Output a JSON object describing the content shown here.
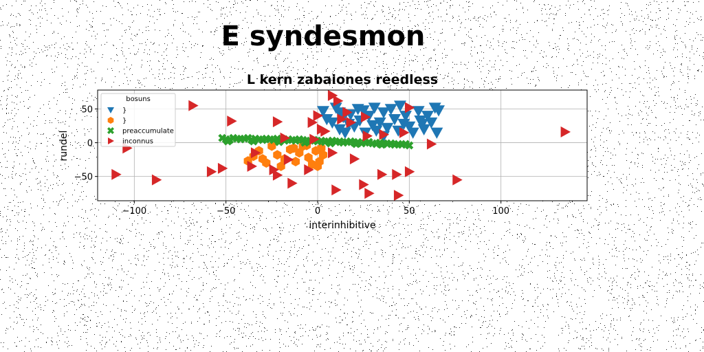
{
  "suptitle": "E syndesmon",
  "chart_data": {
    "type": "scatter",
    "title": "L kern zabaiones reedless",
    "xlabel": "interinhibitive",
    "ylabel": "rundel",
    "xlim": [
      -120,
      147
    ],
    "ylim": [
      -86,
      78
    ],
    "xticks": [
      -100,
      -50,
      0,
      50,
      100
    ],
    "yticks": [
      -50,
      0,
      50
    ],
    "xtick_labels": [
      "−100",
      "−50",
      "0",
      "50",
      "100"
    ],
    "ytick_labels": [
      "−50",
      "0",
      "50"
    ],
    "grid": true,
    "legend": {
      "title": "bosuns",
      "placement": "upper-left"
    },
    "series": [
      {
        "name": "}",
        "color": "#1f77b4",
        "marker": "triangle-down",
        "points": [
          [
            3,
            47
          ],
          [
            5,
            35
          ],
          [
            8,
            30
          ],
          [
            10,
            52
          ],
          [
            12,
            45
          ],
          [
            12,
            20
          ],
          [
            14,
            38
          ],
          [
            15,
            15
          ],
          [
            17,
            28
          ],
          [
            18,
            42
          ],
          [
            20,
            24
          ],
          [
            22,
            50
          ],
          [
            23,
            33
          ],
          [
            25,
            48
          ],
          [
            26,
            15
          ],
          [
            28,
            40
          ],
          [
            30,
            26
          ],
          [
            31,
            52
          ],
          [
            32,
            18
          ],
          [
            34,
            30
          ],
          [
            36,
            45
          ],
          [
            36,
            10
          ],
          [
            38,
            22
          ],
          [
            40,
            50
          ],
          [
            42,
            35
          ],
          [
            44,
            18
          ],
          [
            45,
            55
          ],
          [
            47,
            28
          ],
          [
            48,
            40
          ],
          [
            50,
            24
          ],
          [
            52,
            15
          ],
          [
            55,
            47
          ],
          [
            56,
            33
          ],
          [
            58,
            20
          ],
          [
            60,
            40
          ],
          [
            62,
            30
          ],
          [
            64,
            52
          ],
          [
            65,
            15
          ],
          [
            66,
            48
          ],
          [
            57,
            28
          ]
        ]
      },
      {
        "name": "}",
        "color": "#ff7f0e",
        "marker": "hexagon",
        "points": [
          [
            -38,
            -27
          ],
          [
            -35,
            -20
          ],
          [
            -32,
            -12
          ],
          [
            -28,
            -30
          ],
          [
            -25,
            -5
          ],
          [
            -22,
            -18
          ],
          [
            -20,
            -35
          ],
          [
            -18,
            -24
          ],
          [
            -15,
            -10
          ],
          [
            -12,
            -28
          ],
          [
            -10,
            -15
          ],
          [
            -8,
            -5
          ],
          [
            -5,
            -22
          ],
          [
            -3,
            -32
          ],
          [
            -1,
            -12
          ],
          [
            1,
            -28
          ],
          [
            2,
            -8
          ],
          [
            0,
            -35
          ],
          [
            3,
            -18
          ],
          [
            -13,
            -8
          ],
          [
            -30,
            -24
          ],
          [
            -6,
            -4
          ]
        ]
      },
      {
        "name": "preaccumulate",
        "color": "#2ca02c",
        "marker": "x",
        "points": [
          [
            -52,
            7
          ],
          [
            -50,
            5
          ],
          [
            -48,
            4
          ],
          [
            -46,
            7
          ],
          [
            -44,
            6
          ],
          [
            -42,
            5
          ],
          [
            -40,
            6
          ],
          [
            -38,
            7
          ],
          [
            -36,
            4
          ],
          [
            -34,
            6
          ],
          [
            -32,
            5
          ],
          [
            -30,
            4
          ],
          [
            -28,
            6
          ],
          [
            -26,
            5
          ],
          [
            -24,
            4
          ],
          [
            -22,
            6
          ],
          [
            -20,
            5
          ],
          [
            -18,
            3
          ],
          [
            -16,
            5
          ],
          [
            -14,
            4
          ],
          [
            -12,
            3
          ],
          [
            -10,
            5
          ],
          [
            -8,
            4
          ],
          [
            -6,
            2
          ],
          [
            -4,
            3
          ],
          [
            -2,
            4
          ],
          [
            0,
            2
          ],
          [
            2,
            3
          ],
          [
            4,
            1
          ],
          [
            6,
            2
          ],
          [
            8,
            3
          ],
          [
            10,
            1
          ],
          [
            12,
            2
          ],
          [
            14,
            0
          ],
          [
            16,
            1
          ],
          [
            18,
            2
          ],
          [
            20,
            0
          ],
          [
            22,
            1
          ],
          [
            24,
            -1
          ],
          [
            26,
            0
          ],
          [
            28,
            1
          ],
          [
            30,
            -1
          ],
          [
            32,
            -2
          ],
          [
            34,
            0
          ],
          [
            36,
            -1
          ],
          [
            38,
            -2
          ],
          [
            40,
            -1
          ],
          [
            42,
            -3
          ],
          [
            44,
            -2
          ],
          [
            46,
            -3
          ],
          [
            48,
            -2
          ],
          [
            50,
            -4
          ],
          [
            -49,
            2
          ],
          [
            -35,
            2
          ],
          [
            -21,
            1
          ],
          [
            -7,
            0
          ],
          [
            7,
            -1
          ],
          [
            21,
            -2
          ],
          [
            35,
            -3
          ]
        ]
      },
      {
        "name": "inconnus",
        "color": "#d62728",
        "marker": "triangle-right",
        "points": [
          [
            -110,
            -47
          ],
          [
            -104,
            -8
          ],
          [
            -88,
            -55
          ],
          [
            -68,
            55
          ],
          [
            -58,
            -43
          ],
          [
            -52,
            -38
          ],
          [
            -47,
            32
          ],
          [
            -36,
            -35
          ],
          [
            -34,
            -15
          ],
          [
            -24,
            -40
          ],
          [
            -22,
            -48
          ],
          [
            -22,
            31
          ],
          [
            -18,
            7
          ],
          [
            -16,
            -25
          ],
          [
            -14,
            -60
          ],
          [
            -5,
            -40
          ],
          [
            -3,
            30
          ],
          [
            -2,
            5
          ],
          [
            0,
            40
          ],
          [
            2,
            20
          ],
          [
            4,
            17
          ],
          [
            8,
            -15
          ],
          [
            8,
            70
          ],
          [
            10,
            -70
          ],
          [
            11,
            62
          ],
          [
            13,
            35
          ],
          [
            16,
            45
          ],
          [
            18,
            30
          ],
          [
            20,
            -24
          ],
          [
            25,
            -62
          ],
          [
            26,
            38
          ],
          [
            27,
            10
          ],
          [
            28,
            -75
          ],
          [
            35,
            -47
          ],
          [
            36,
            12
          ],
          [
            43,
            -47
          ],
          [
            44,
            -78
          ],
          [
            47,
            15
          ],
          [
            50,
            -43
          ],
          [
            50,
            52
          ],
          [
            62,
            -2
          ],
          [
            76,
            -55
          ],
          [
            135,
            16
          ]
        ]
      }
    ]
  }
}
